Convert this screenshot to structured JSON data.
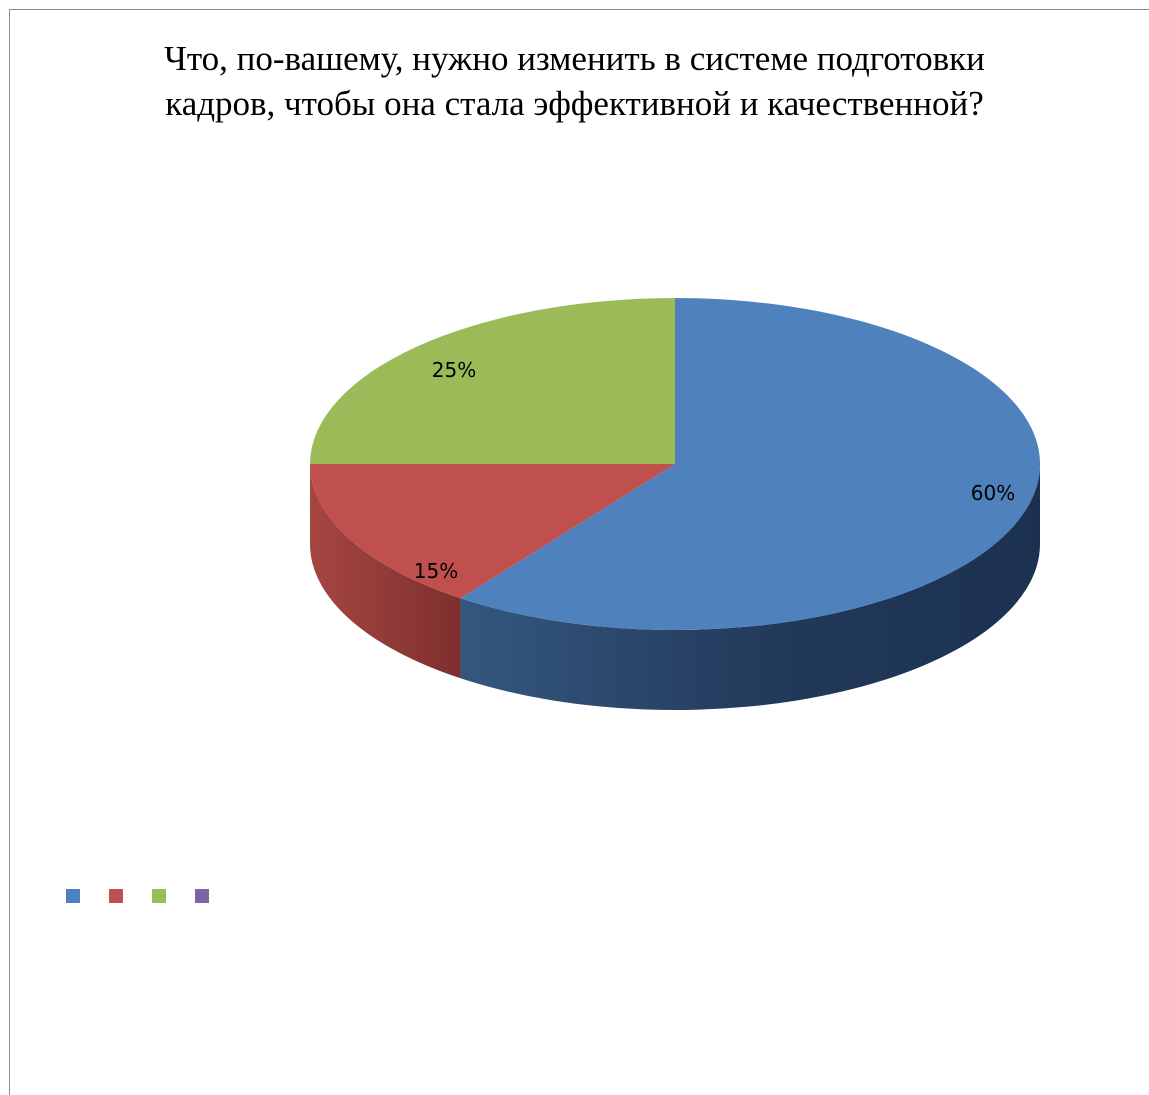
{
  "chart_data": {
    "type": "pie",
    "title_lines": [
      "Что, по-вашему, нужно изменить в системе подготовки",
      "кадров, чтобы она стала эффективной и качественной?"
    ],
    "slices": [
      {
        "label": "60%",
        "value": 60,
        "color": "#4f81bd",
        "side": "#2c4a72"
      },
      {
        "label": "15%",
        "value": 15,
        "color": "#c0504d",
        "side": "#8f3835"
      },
      {
        "label": "25%",
        "value": 25,
        "color": "#9bbb59",
        "side": "#6f8a3c"
      }
    ],
    "legend_colors": [
      "#4f81bd",
      "#c0504d",
      "#9bbb59",
      "#8064a2"
    ],
    "legend_placement": "bottom-left",
    "three_d": true
  }
}
